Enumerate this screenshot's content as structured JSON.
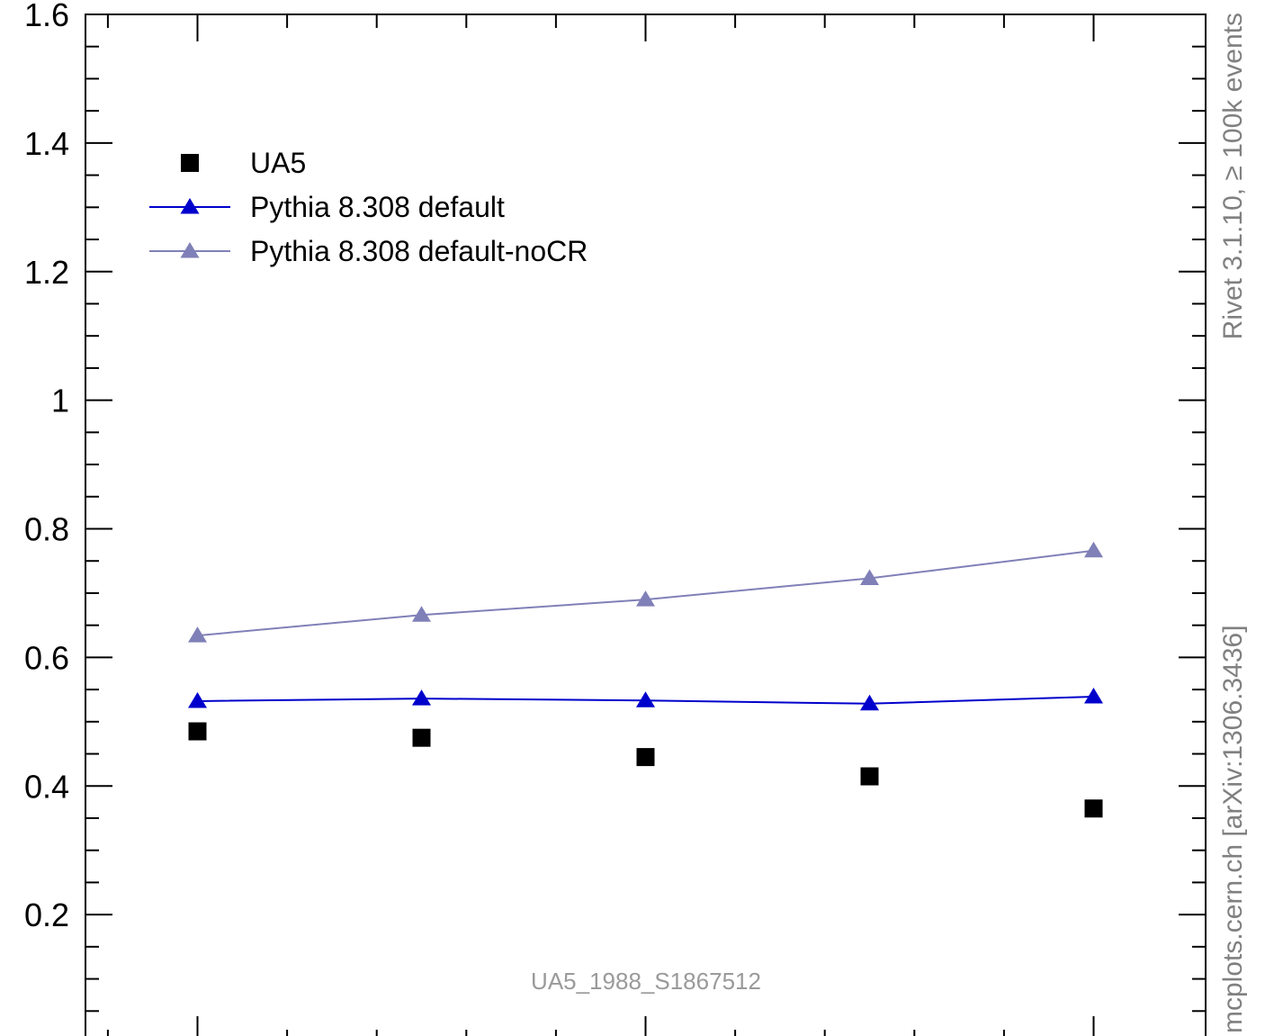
{
  "chart_data": {
    "type": "scatter",
    "title": "",
    "xlabel": "",
    "ylabel": "",
    "ylim": [
      0,
      1.6
    ],
    "xlim": [
      0.5,
      5.5
    ],
    "grid": false,
    "legend_position": "top-left",
    "yticks": [
      "0.2",
      "0.4",
      "0.6",
      "0.8",
      "1",
      "1.2",
      "1.4",
      "1.6"
    ],
    "x": [
      1,
      2,
      3,
      4,
      5
    ],
    "series": [
      {
        "name": "UA5",
        "marker": "square",
        "line": false,
        "color": "#000000",
        "values": [
          0.485,
          0.475,
          0.445,
          0.415,
          0.365
        ]
      },
      {
        "name": "Pythia 8.308 default",
        "marker": "triangle",
        "line": true,
        "color": "#0000cc",
        "values": [
          0.532,
          0.536,
          0.533,
          0.528,
          0.539
        ]
      },
      {
        "name": "Pythia 8.308 default-noCR",
        "marker": "triangle",
        "line": true,
        "color": "#8080b8",
        "values": [
          0.634,
          0.666,
          0.69,
          0.723,
          0.766
        ]
      }
    ],
    "annotations": {
      "watermark": "UA5_1988_S1867512",
      "side_top": "Rivet 3.1.10, ≥ 100k events",
      "side_bottom": "mcplots.cern.ch [arXiv:1306.3436]"
    }
  }
}
